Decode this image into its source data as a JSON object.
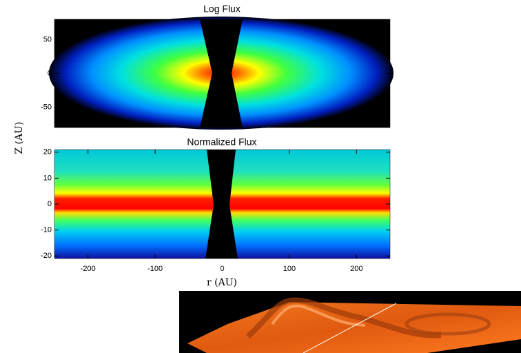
{
  "chart_data": [
    {
      "type": "heatmap",
      "title": "Log Flux",
      "ylabel": "Z (AU)",
      "ylim": [
        -80,
        80
      ],
      "yticks": [
        -50,
        0,
        50
      ]
    },
    {
      "type": "heatmap",
      "title": "Normalized Flux",
      "xlabel": "r (AU)",
      "xlim": [
        -250,
        250
      ],
      "xticks": [
        -200,
        -100,
        0,
        100,
        200
      ],
      "ylim": [
        -21,
        21
      ],
      "yticks": [
        -20,
        -10,
        0,
        10,
        20
      ]
    }
  ]
}
